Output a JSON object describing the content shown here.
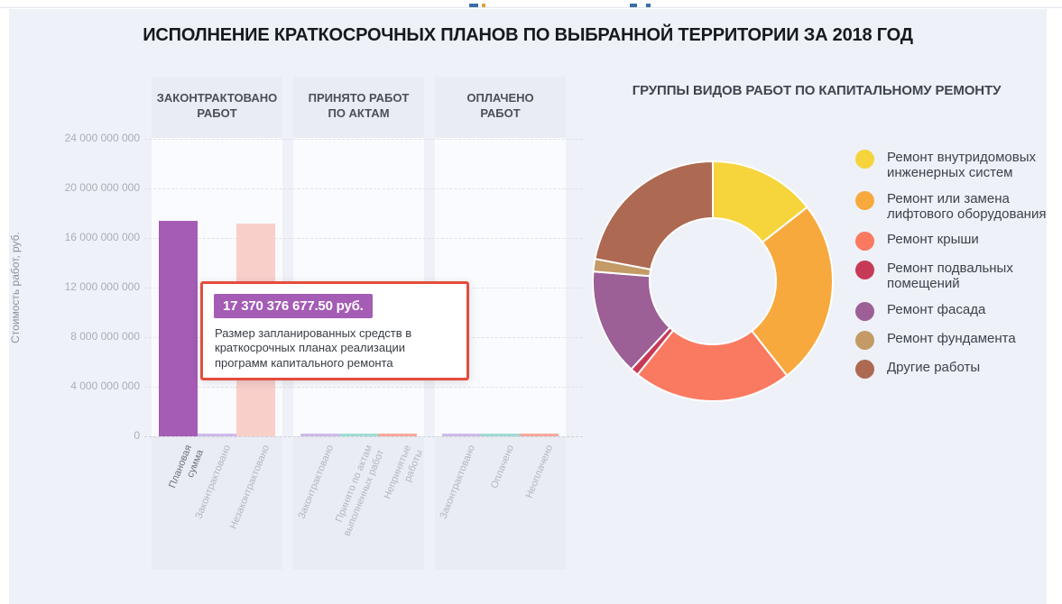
{
  "title": "ИСПОЛНЕНИЕ КРАТКОСРОЧНЫХ ПЛАНОВ ПО ВЫБРАННОЙ ТЕРРИТОРИИ ЗА 2018 ГОД",
  "tooltip": {
    "value": "17 370 376 677.50 руб.",
    "description": "Размер запланированных средств в краткосрочных планах реализации программ капитального ремонта",
    "badge_color": "#a45cb5",
    "border_color": "#e64c3c"
  },
  "chart_data": [
    {
      "type": "bar",
      "title": "",
      "xlabel": "",
      "ylabel": "Стоимость работ, руб.",
      "ylim": [
        0,
        24000000000
      ],
      "grid": true,
      "y_ticks": [
        "24 000 000 000",
        "20 000 000 000",
        "16 000 000 000",
        "12 000 000 000",
        "8 000 000 000",
        "4 000 000 000",
        "0"
      ],
      "panels": [
        {
          "header": "ЗАКОНТРАКТОВАНО\nРАБОТ",
          "bars": [
            {
              "label": "Плановая\nсумма",
              "value": 17370376677.5,
              "color": "#a45cb5",
              "highlight": true
            },
            {
              "label": "Законтрактовано",
              "value": 180000000,
              "color": "#cdbbea",
              "highlight": false
            },
            {
              "label": "Незаконтрактовано",
              "value": 17190000000,
              "color": "#f9cfca",
              "highlight": false
            }
          ]
        },
        {
          "header": "ПРИНЯТО РАБОТ\nПО АКТАМ",
          "bars": [
            {
              "label": "Законтрактовано",
              "value": 180000000,
              "color": "#cdbbea",
              "highlight": false
            },
            {
              "label": "Принято по актам\nвыполненных работ",
              "value": 230000000,
              "color": "#9edcd2",
              "highlight": false
            },
            {
              "label": "Непринятые\nработы",
              "value": 160000000,
              "color": "#f6a89d",
              "highlight": false
            }
          ]
        },
        {
          "header": "ОПЛАЧЕНО\nРАБОТ",
          "bars": [
            {
              "label": "Законтрактовано",
              "value": 180000000,
              "color": "#cdbbea",
              "highlight": false
            },
            {
              "label": "Оплачено",
              "value": 210000000,
              "color": "#9edcd2",
              "highlight": false
            },
            {
              "label": "Неоплачено",
              "value": 150000000,
              "color": "#f6a89d",
              "highlight": false
            }
          ]
        }
      ]
    },
    {
      "type": "pie",
      "donut": true,
      "title": "ГРУППЫ ВИДОВ РАБОТ ПО КАПИТАЛЬНОМУ РЕМОНТУ",
      "legend_position": "right",
      "slices": [
        {
          "label": "Ремонт внутридомовых инженерных систем",
          "percent": 14.4,
          "color": "#f6d43c"
        },
        {
          "label": "Ремонт или замена лифтового оборудования",
          "percent": 25.0,
          "color": "#f8a93e"
        },
        {
          "label": "Ремонт крыши",
          "percent": 21.4,
          "color": "#fa7a61"
        },
        {
          "label": "Ремонт подвальных помещений",
          "percent": 1.1,
          "color": "#c73a57"
        },
        {
          "label": "Ремонт фасада",
          "percent": 14.4,
          "color": "#9c5f96"
        },
        {
          "label": "Ремонт фундамента",
          "percent": 1.7,
          "color": "#c49a67"
        },
        {
          "label": "Другие работы",
          "percent": 22.0,
          "color": "#ad6951"
        }
      ]
    }
  ]
}
